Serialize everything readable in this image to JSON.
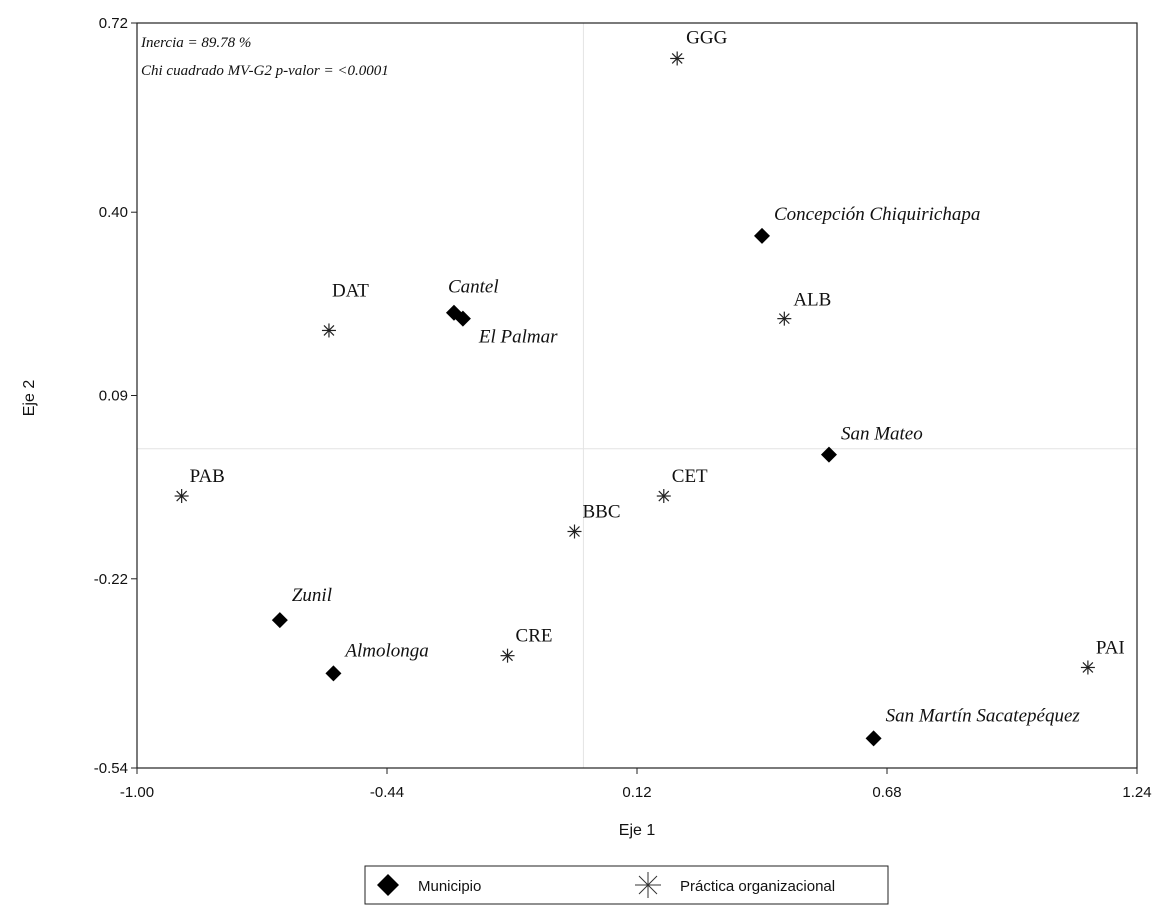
{
  "chart_data": {
    "type": "scatter",
    "xlabel": "Eje 1",
    "ylabel": "Eje 2",
    "xlim": [
      -1.0,
      1.24
    ],
    "ylim": [
      -0.54,
      0.72
    ],
    "xticks": [
      "-1.00",
      "-0.44",
      "0.12",
      "0.68",
      "1.24"
    ],
    "yticks": [
      "0.72",
      "0.40",
      "0.09",
      "-0.22",
      "-0.54"
    ],
    "reference_lines": {
      "x": 0.0,
      "y": 0.0
    },
    "annotations": [
      "Inercia = 89.78 %",
      "Chi cuadrado MV-G2 p-valor = <0.0001"
    ],
    "legend": {
      "position": "bottom",
      "entries": [
        "Municipio",
        "Práctica organizacional"
      ]
    },
    "series": [
      {
        "name": "Municipio",
        "marker": "diamond",
        "points": [
          {
            "label": "Concepción Chiquirichapa",
            "x": 0.4,
            "y": 0.36
          },
          {
            "label": "Cantel",
            "x": -0.29,
            "y": 0.23
          },
          {
            "label": "El Palmar",
            "x": -0.27,
            "y": 0.22
          },
          {
            "label": "San Mateo",
            "x": 0.55,
            "y": -0.01
          },
          {
            "label": "Zunil",
            "x": -0.68,
            "y": -0.29
          },
          {
            "label": "Almolonga",
            "x": -0.56,
            "y": -0.38
          },
          {
            "label": "San Martín Sacatepéquez",
            "x": 0.65,
            "y": -0.49
          }
        ]
      },
      {
        "name": "Práctica organizacional",
        "marker": "asterisk",
        "points": [
          {
            "label": "GGG",
            "x": 0.21,
            "y": 0.66
          },
          {
            "label": "ALB",
            "x": 0.45,
            "y": 0.22
          },
          {
            "label": "DAT",
            "x": -0.57,
            "y": 0.2
          },
          {
            "label": "PAB",
            "x": -0.9,
            "y": -0.08
          },
          {
            "label": "CET",
            "x": 0.18,
            "y": -0.08
          },
          {
            "label": "BBC",
            "x": -0.02,
            "y": -0.14
          },
          {
            "label": "CRE",
            "x": -0.17,
            "y": -0.35
          },
          {
            "label": "PAI",
            "x": 1.13,
            "y": -0.37
          }
        ]
      }
    ]
  }
}
